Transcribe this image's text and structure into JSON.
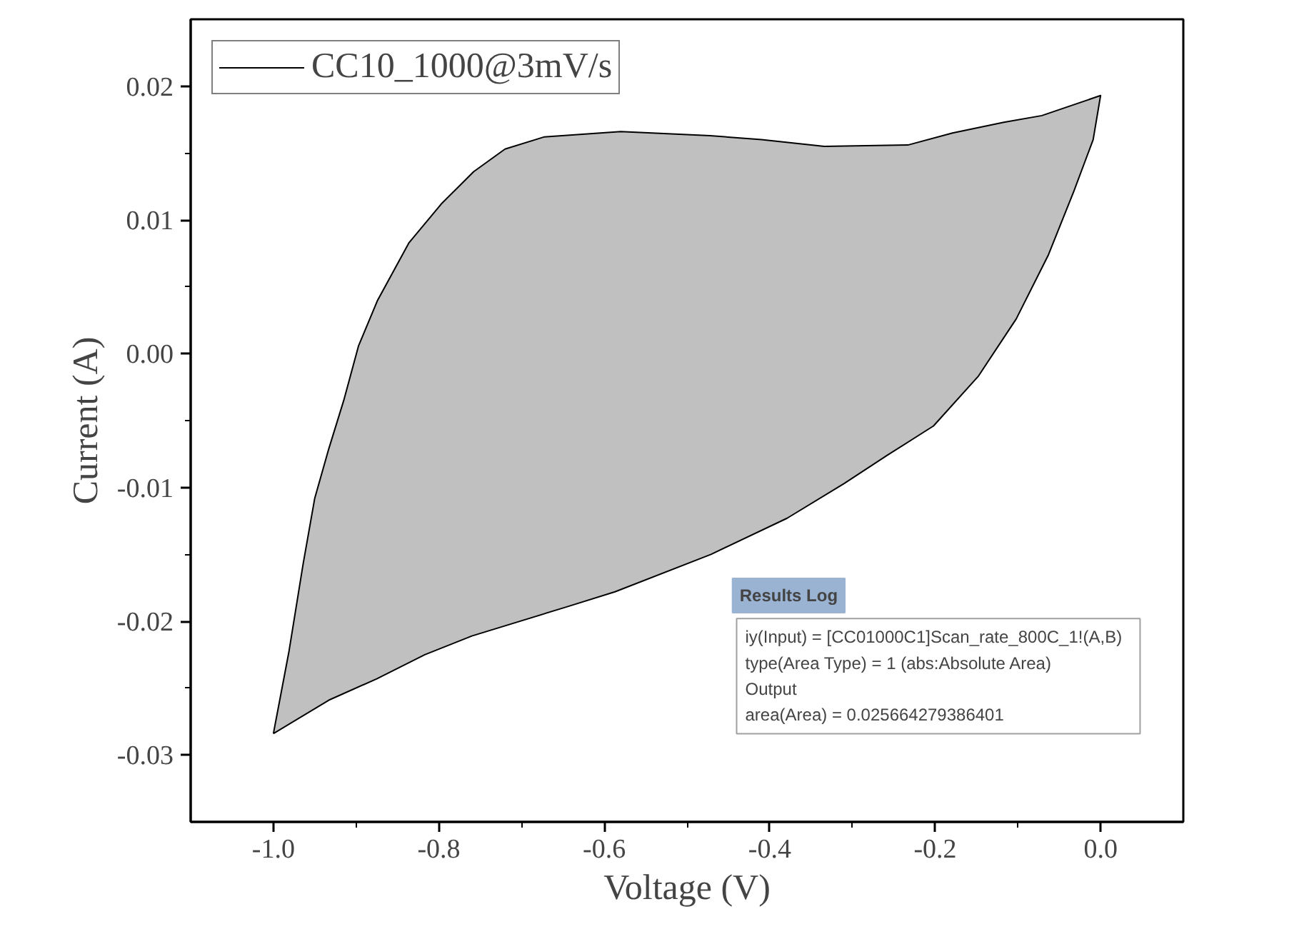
{
  "chart_data": {
    "type": "area",
    "xlabel": "Voltage (V)",
    "ylabel": "Current (A)",
    "legend": "top left",
    "grid": false,
    "xlim": [
      -1.1,
      0.1
    ],
    "ylim": [
      -0.035,
      0.025
    ],
    "xticks": [
      {
        "value": -1.0,
        "label": "-1.0"
      },
      {
        "value": -0.9,
        "label": null
      },
      {
        "value": -0.8,
        "label": "-0.8"
      },
      {
        "value": -0.7,
        "label": null
      },
      {
        "value": -0.6,
        "label": "-0.6"
      },
      {
        "value": -0.5,
        "label": null
      },
      {
        "value": -0.4,
        "label": "-0.4"
      },
      {
        "value": -0.3,
        "label": null
      },
      {
        "value": -0.2,
        "label": "-0.2"
      },
      {
        "value": -0.1,
        "label": null
      },
      {
        "value": 0.0,
        "label": "0.0"
      }
    ],
    "yticks": [
      {
        "value": -0.03,
        "label": "-0.03"
      },
      {
        "value": -0.025,
        "label": null
      },
      {
        "value": -0.02,
        "label": "-0.02"
      },
      {
        "value": -0.015,
        "label": null
      },
      {
        "value": -0.01,
        "label": "-0.01"
      },
      {
        "value": -0.005,
        "label": null
      },
      {
        "value": 0.0,
        "label": "0.00"
      },
      {
        "value": 0.005,
        "label": null
      },
      {
        "value": 0.01,
        "label": "0.01"
      },
      {
        "value": 0.015,
        "label": null
      },
      {
        "value": 0.02,
        "label": "0.02"
      }
    ],
    "series": [
      {
        "name": "CC10_1000@3mV/s",
        "color": "#c0c0c0",
        "x": [
          -1.0,
          -0.981,
          -0.964,
          -0.95,
          -0.933,
          -0.915,
          -0.897,
          -0.874,
          -0.836,
          -0.797,
          -0.758,
          -0.72,
          -0.673,
          -0.58,
          -0.472,
          -0.41,
          -0.334,
          -0.233,
          -0.179,
          -0.117,
          -0.071,
          0.0,
          -0.009,
          -0.032,
          -0.063,
          -0.102,
          -0.148,
          -0.202,
          -0.258,
          -0.31,
          -0.379,
          -0.471,
          -0.587,
          -0.644,
          -0.76,
          -0.817,
          -0.875,
          -0.933,
          -1.0
        ],
        "values": [
          -0.0284,
          -0.0222,
          -0.0157,
          -0.0108,
          -0.0071,
          -0.0035,
          0.0006,
          0.004,
          0.0083,
          0.0112,
          0.0136,
          0.0153,
          0.0162,
          0.0166,
          0.0163,
          0.016,
          0.0155,
          0.0156,
          0.0165,
          0.0173,
          0.0178,
          0.0193,
          0.016,
          0.0122,
          0.0074,
          0.0026,
          -0.0017,
          -0.0054,
          -0.0076,
          -0.0097,
          -0.0123,
          -0.015,
          -0.0178,
          -0.0189,
          -0.0211,
          -0.0225,
          -0.0243,
          -0.0259,
          -0.0284
        ]
      }
    ],
    "annotations": [
      "Results Log",
      "  iy(Input) = [CC01000C1]Scan_rate_800C_1!(A,B)",
      "  type(Area Type) = 1 (abs:Absolute Area)",
      "Output",
      "  area(Area) = 0.025664279386401"
    ]
  }
}
